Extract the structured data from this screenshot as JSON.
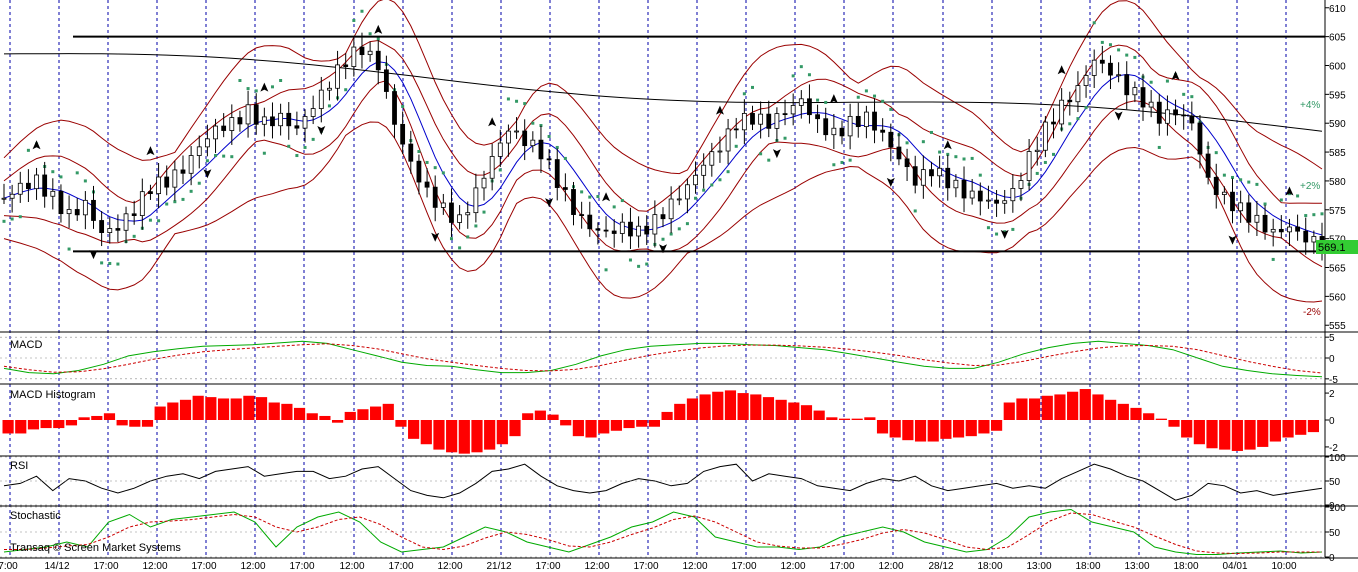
{
  "chart_data": [
    {
      "type": "candlestick",
      "panel": "price",
      "y_ticks": [
        555,
        560,
        565,
        570,
        575,
        580,
        585,
        590,
        595,
        600,
        605,
        610
      ],
      "ylim": [
        554,
        611
      ],
      "x_labels": [
        "7:00",
        "14/12",
        "17:00",
        "12:00",
        "17:00",
        "12:00",
        "17:00",
        "12:00",
        "17:00",
        "12:00",
        "21/12",
        "17:00",
        "12:00",
        "17:00",
        "12:00",
        "17:00",
        "12:00",
        "17:00",
        "12:00",
        "28/12",
        "18:00",
        "13:00",
        "18:00",
        "13:00",
        "18:00",
        "04/01",
        "10:00"
      ],
      "horizontal_levels": [
        605,
        567.8
      ],
      "last_price_label": "569.1",
      "band_labels": {
        "upper": "+4%",
        "middle": "+2%",
        "lower": "-2%"
      },
      "close_path": [
        [
          0,
          577
        ],
        [
          4,
          579
        ],
        [
          8,
          580
        ],
        [
          12,
          577
        ],
        [
          16,
          574
        ],
        [
          20,
          576
        ],
        [
          24,
          571
        ],
        [
          28,
          572
        ],
        [
          32,
          575
        ],
        [
          36,
          579
        ],
        [
          40,
          580
        ],
        [
          44,
          582
        ],
        [
          48,
          586
        ],
        [
          52,
          589
        ],
        [
          56,
          590
        ],
        [
          60,
          592
        ],
        [
          64,
          590
        ],
        [
          68,
          591
        ],
        [
          72,
          589
        ],
        [
          76,
          593
        ],
        [
          80,
          597
        ],
        [
          84,
          601
        ],
        [
          88,
          603
        ],
        [
          92,
          600
        ],
        [
          96,
          590
        ],
        [
          100,
          583
        ],
        [
          104,
          578
        ],
        [
          108,
          575
        ],
        [
          112,
          573
        ],
        [
          116,
          578
        ],
        [
          120,
          584
        ],
        [
          124,
          589
        ],
        [
          128,
          587
        ],
        [
          132,
          585
        ],
        [
          136,
          580
        ],
        [
          140,
          575
        ],
        [
          144,
          572
        ],
        [
          148,
          571
        ],
        [
          152,
          572
        ],
        [
          156,
          571
        ],
        [
          160,
          573
        ],
        [
          164,
          576
        ],
        [
          168,
          579
        ],
        [
          172,
          583
        ],
        [
          176,
          586
        ],
        [
          180,
          590
        ],
        [
          184,
          591
        ],
        [
          188,
          590
        ],
        [
          192,
          592
        ],
        [
          196,
          594
        ],
        [
          200,
          590
        ],
        [
          204,
          588
        ],
        [
          208,
          590
        ],
        [
          212,
          591
        ],
        [
          216,
          588
        ],
        [
          220,
          584
        ],
        [
          224,
          580
        ],
        [
          228,
          582
        ],
        [
          232,
          580
        ],
        [
          236,
          578
        ],
        [
          240,
          577
        ],
        [
          244,
          576
        ],
        [
          248,
          578
        ],
        [
          252,
          584
        ],
        [
          256,
          589
        ],
        [
          260,
          593
        ],
        [
          264,
          596
        ],
        [
          268,
          601
        ],
        [
          272,
          599
        ],
        [
          276,
          596
        ],
        [
          280,
          594
        ],
        [
          284,
          591
        ],
        [
          288,
          592
        ],
        [
          292,
          590
        ],
        [
          296,
          580
        ],
        [
          300,
          577
        ],
        [
          304,
          575
        ],
        [
          308,
          573
        ],
        [
          312,
          571
        ],
        [
          316,
          572
        ],
        [
          320,
          570
        ],
        [
          324,
          569.1
        ]
      ],
      "series": [
        {
          "name": "MA long",
          "color": "#000000"
        },
        {
          "name": "MA",
          "color": "#0000cc"
        },
        {
          "name": "Bollinger",
          "color": "#990000"
        },
        {
          "name": "Parabolic SAR",
          "color": "#339966"
        }
      ]
    },
    {
      "type": "line",
      "panel": "MACD",
      "title": "MACD",
      "y_ticks": [
        5,
        0,
        -5
      ],
      "ylim": [
        -6,
        6
      ],
      "series": [
        {
          "name": "MACD",
          "color": "#00aa00",
          "values": [
            -2.5,
            -3.5,
            -3.8,
            -3,
            -1.5,
            0.5,
            1.5,
            2.2,
            2.8,
            3,
            3.2,
            3.6,
            4,
            3.5,
            2,
            0.5,
            -1,
            -1.8,
            -2,
            -2.8,
            -3.5,
            -3.5,
            -3,
            -1.5,
            0.5,
            2,
            2.8,
            3.2,
            3.5,
            3.5,
            3.2,
            3,
            2.5,
            2,
            1,
            0,
            -1,
            -2,
            -2.5,
            -2.5,
            -1,
            1,
            2.5,
            3.5,
            4,
            3.5,
            3,
            2,
            0,
            -2,
            -3,
            -3.8,
            -4.2,
            -4.5
          ]
        },
        {
          "name": "Signal",
          "color": "#cc0000",
          "values": [
            -2,
            -2.8,
            -3.4,
            -3.3,
            -2.6,
            -1.5,
            -0.3,
            0.7,
            1.5,
            2,
            2.4,
            2.8,
            3.2,
            3.4,
            3,
            2.2,
            1,
            -0.2,
            -1,
            -1.8,
            -2.5,
            -3,
            -3.1,
            -2.7,
            -1.8,
            -0.5,
            0.7,
            1.6,
            2.4,
            2.9,
            3.1,
            3.1,
            2.9,
            2.6,
            2.1,
            1.4,
            0.6,
            -0.4,
            -1.2,
            -1.8,
            -1.7,
            -0.8,
            0.4,
            1.5,
            2.4,
            2.9,
            3,
            2.8,
            2,
            0.6,
            -0.8,
            -2,
            -3,
            -3.6
          ]
        }
      ]
    },
    {
      "type": "bar",
      "panel": "MACD Histogram",
      "title": "MACD Histogram",
      "y_ticks": [
        2,
        0,
        -2
      ],
      "ylim": [
        -2.6,
        2.6
      ],
      "color": "#ff0000",
      "values": [
        -1,
        -1,
        -0.7,
        -0.6,
        -0.6,
        -0.4,
        0.2,
        0.3,
        0.5,
        -0.4,
        -0.5,
        -0.5,
        1,
        1.3,
        1.5,
        1.8,
        1.7,
        1.6,
        1.6,
        1.8,
        1.7,
        1.3,
        1.2,
        0.9,
        0.5,
        0.3,
        -0.2,
        0.6,
        0.8,
        1,
        1.2,
        -0.5,
        -1.4,
        -1.8,
        -2.2,
        -2.4,
        -2.5,
        -2.4,
        -2.2,
        -1.8,
        -1.2,
        0.5,
        0.7,
        0.4,
        -0.4,
        -1.2,
        -1.3,
        -1,
        -0.8,
        -0.6,
        -0.5,
        -0.5,
        0.6,
        1.2,
        1.6,
        1.9,
        2.1,
        2.2,
        2,
        1.9,
        1.7,
        1.5,
        1.3,
        1.1,
        0.7,
        0.2,
        0.1,
        0.1,
        0.2,
        -1,
        -1.3,
        -1.5,
        -1.6,
        -1.6,
        -1.4,
        -1.3,
        -1.2,
        -1,
        -0.8,
        1.3,
        1.6,
        1.6,
        1.8,
        1.9,
        2.1,
        2.3,
        1.9,
        1.5,
        1.2,
        0.9,
        0.5,
        0.1,
        -0.5,
        -1.3,
        -1.8,
        -2.1,
        -2.2,
        -2.3,
        -2.2,
        -2,
        -1.6,
        -1.3,
        -1.1,
        -0.9
      ]
    },
    {
      "type": "line",
      "panel": "RSI",
      "title": "RSI",
      "y_ticks": [
        100,
        50,
        0
      ],
      "ylim": [
        0,
        100
      ],
      "series": [
        {
          "name": "RSI",
          "color": "#000000",
          "values": [
            40,
            45,
            60,
            30,
            55,
            50,
            35,
            25,
            35,
            50,
            60,
            65,
            55,
            70,
            75,
            80,
            60,
            65,
            70,
            70,
            55,
            60,
            75,
            80,
            55,
            30,
            20,
            15,
            25,
            45,
            70,
            75,
            85,
            60,
            40,
            30,
            25,
            30,
            45,
            55,
            50,
            40,
            45,
            70,
            80,
            85,
            50,
            65,
            60,
            55,
            40,
            35,
            30,
            45,
            55,
            50,
            60,
            40,
            30,
            35,
            40,
            45,
            35,
            40,
            35,
            55,
            70,
            85,
            75,
            60,
            50,
            30,
            10,
            20,
            45,
            40,
            25,
            30,
            20,
            25,
            30,
            35
          ]
        }
      ]
    },
    {
      "type": "line",
      "panel": "Stochastic",
      "title": "Stochastic",
      "y_ticks": [
        100,
        50,
        0
      ],
      "ylim": [
        0,
        100
      ],
      "series": [
        {
          "name": "%K",
          "color": "#00aa00",
          "values": [
            10,
            15,
            20,
            30,
            20,
            70,
            85,
            60,
            75,
            80,
            85,
            90,
            70,
            20,
            60,
            80,
            90,
            70,
            30,
            10,
            15,
            20,
            40,
            60,
            50,
            30,
            20,
            10,
            25,
            40,
            60,
            70,
            90,
            80,
            40,
            30,
            20,
            20,
            15,
            20,
            40,
            50,
            60,
            50,
            30,
            20,
            10,
            15,
            40,
            80,
            90,
            95,
            70,
            60,
            50,
            20,
            10,
            5,
            5,
            8,
            10,
            12,
            8,
            10
          ]
        },
        {
          "name": "%D",
          "color": "#cc0000",
          "values": [
            15,
            15,
            18,
            22,
            25,
            40,
            60,
            70,
            72,
            75,
            80,
            85,
            80,
            60,
            50,
            60,
            75,
            80,
            65,
            40,
            20,
            15,
            22,
            38,
            50,
            45,
            35,
            22,
            20,
            30,
            45,
            58,
            75,
            82,
            70,
            50,
            30,
            22,
            18,
            18,
            25,
            35,
            48,
            55,
            48,
            35,
            20,
            15,
            20,
            45,
            72,
            88,
            85,
            72,
            60,
            42,
            25,
            12,
            8,
            7,
            8,
            10,
            10,
            10
          ]
        }
      ]
    }
  ],
  "watermark": "Transaq © Screen Market Systems",
  "colors": {
    "grid_v": "#0000aa",
    "band_red": "#990000",
    "ma_blue": "#0000cc",
    "sar_green": "#339966",
    "hist_red": "#ff0000",
    "macd_green": "#00aa00",
    "last_price_bg": "#33cc33"
  }
}
